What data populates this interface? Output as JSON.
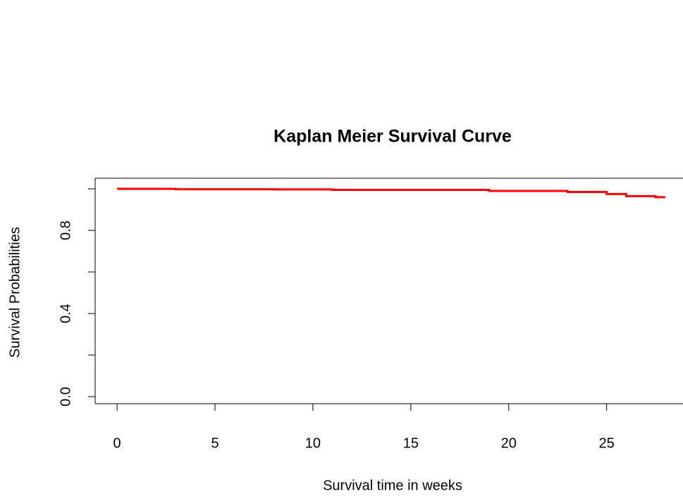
{
  "chart_data": {
    "type": "line",
    "step": true,
    "title": "Kaplan Meier Survival Curve",
    "x_label": "Survival time in weeks",
    "y_label": "Survival Probabilities",
    "series": [
      {
        "color": "#ff0000",
        "x": [
          0,
          3,
          8,
          11,
          19,
          23,
          25,
          26,
          27.5,
          28
        ],
        "values": [
          1.0,
          0.998,
          0.997,
          0.995,
          0.99,
          0.985,
          0.975,
          0.965,
          0.96,
          0.96
        ]
      }
    ],
    "xlim": [
      -1.12,
      28.9
    ],
    "xticks": [
      0,
      5,
      10,
      15,
      20,
      25
    ],
    "ylim": [
      -0.034,
      1.051
    ],
    "yticks": [
      {
        "value": 0,
        "label": "0.0"
      },
      {
        "value": 0.2,
        "label": null
      },
      {
        "value": 0.4,
        "label": "0.4"
      },
      {
        "value": 0.6,
        "label": null
      },
      {
        "value": 0.8,
        "label": "0.8"
      },
      {
        "value": 1.0,
        "label": null
      }
    ]
  }
}
